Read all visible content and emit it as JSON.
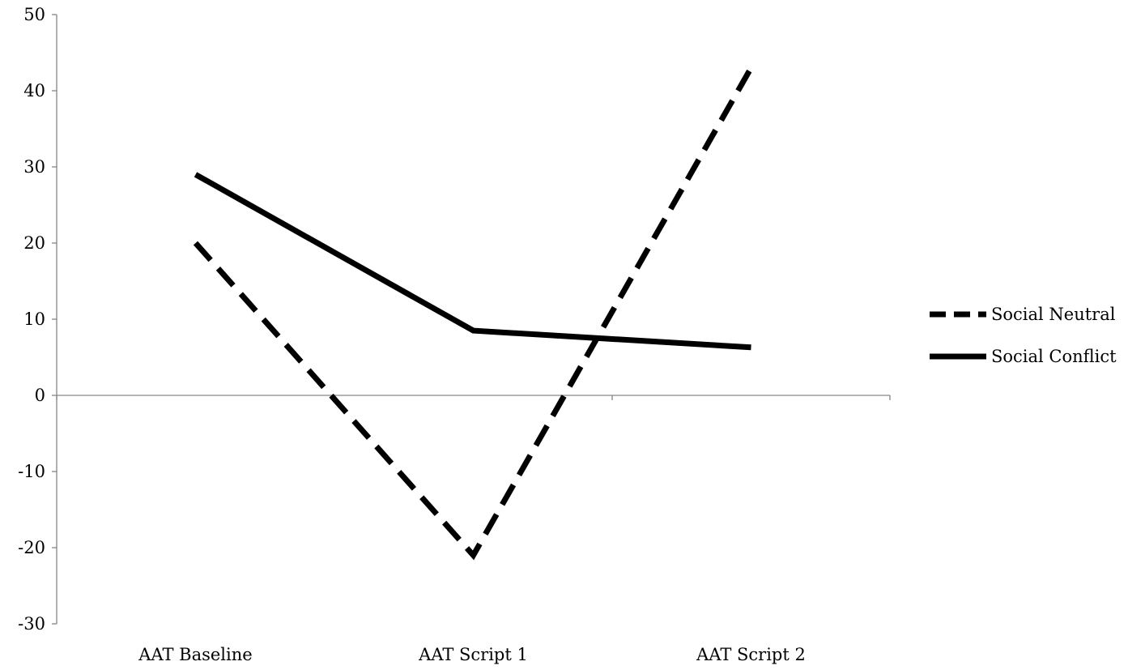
{
  "chart_data": {
    "type": "line",
    "title": "",
    "xlabel": "",
    "ylabel": "",
    "categories": [
      "AAT Baseline",
      "AAT Script 1",
      "AAT Script 2"
    ],
    "ylim": [
      -30,
      50
    ],
    "yticks": [
      -30,
      -20,
      -10,
      0,
      10,
      20,
      30,
      40,
      50
    ],
    "ytick_labels": [
      "-30",
      "-20",
      "-10",
      "0",
      "10",
      "20",
      "30",
      "40",
      "50"
    ],
    "grid": false,
    "legend_position": "right",
    "series": [
      {
        "name": "Social Neutral",
        "values": [
          20,
          -21,
          43
        ],
        "color": "#000000",
        "line_style": "dashed"
      },
      {
        "name": "Social Conflict",
        "values": [
          29,
          8.5,
          6.3
        ],
        "color": "#000000",
        "line_style": "solid"
      }
    ]
  }
}
